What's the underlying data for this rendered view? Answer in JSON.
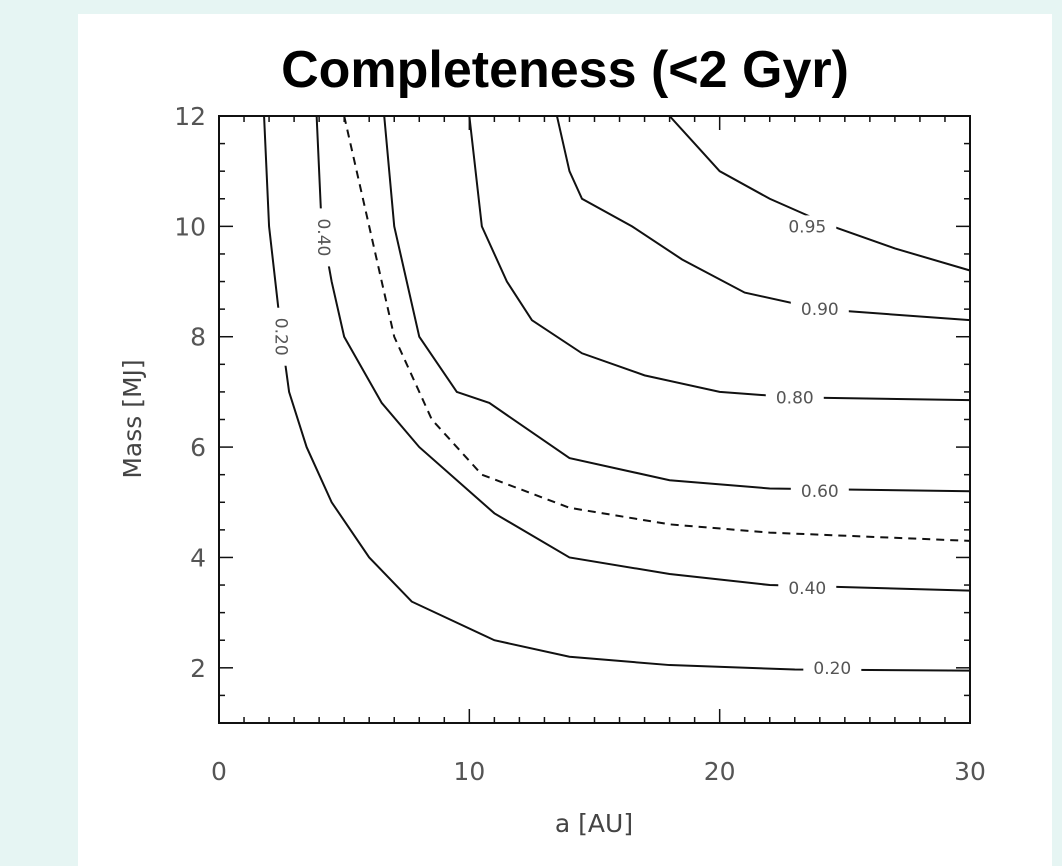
{
  "chart_data": {
    "type": "line",
    "title": "Completeness (<2 Gyr)",
    "xlabel": "a [AU]",
    "ylabel": "Mass [MJ]",
    "xlim": [
      0,
      30
    ],
    "ylim": [
      1,
      12
    ],
    "xticks": [
      "0",
      "10",
      "20",
      "30"
    ],
    "yticks": [
      "2",
      "4",
      "6",
      "8",
      "10",
      "12"
    ],
    "series": [
      {
        "name": "0.20",
        "style": "solid",
        "label_at": [
          24.5,
          2.0
        ],
        "x": [
          1.8,
          2.0,
          2.5,
          2.8,
          3.5,
          4.5,
          6.0,
          7.7,
          11.0,
          14.0,
          18.0,
          23.0,
          30.0
        ],
        "y": [
          12.0,
          10.0,
          8.0,
          7.0,
          6.0,
          5.0,
          4.0,
          3.2,
          2.5,
          2.2,
          2.05,
          1.97,
          1.95
        ]
      },
      {
        "name": "0.40",
        "style": "solid",
        "label_at": [
          23.5,
          3.45
        ],
        "x": [
          3.9,
          4.1,
          4.5,
          5.0,
          6.5,
          8.0,
          11.0,
          14.0,
          18.0,
          22.0,
          30.0
        ],
        "y": [
          12.0,
          10.0,
          9.0,
          8.0,
          6.8,
          6.0,
          4.8,
          4.0,
          3.7,
          3.5,
          3.4
        ]
      },
      {
        "name": "",
        "style": "dashed",
        "label_at": null,
        "x": [
          5.0,
          6.0,
          7.0,
          8.5,
          10.5,
          14.0,
          18.0,
          22.0,
          30.0
        ],
        "y": [
          12.0,
          10.0,
          8.0,
          6.5,
          5.5,
          4.9,
          4.6,
          4.45,
          4.3
        ]
      },
      {
        "name": "0.60",
        "style": "solid",
        "label_at": [
          24.0,
          5.2
        ],
        "x": [
          6.6,
          7.0,
          8.0,
          9.5,
          10.8,
          14.0,
          18.0,
          22.0,
          30.0
        ],
        "y": [
          12.0,
          10.0,
          8.0,
          7.0,
          6.8,
          5.8,
          5.4,
          5.25,
          5.2
        ]
      },
      {
        "name": "0.80",
        "style": "solid",
        "label_at": [
          23.0,
          6.9
        ],
        "x": [
          10.0,
          10.5,
          11.5,
          12.5,
          14.5,
          17.0,
          20.0,
          23.0,
          30.0
        ],
        "y": [
          12.0,
          10.0,
          9.0,
          8.3,
          7.7,
          7.3,
          7.0,
          6.9,
          6.85
        ]
      },
      {
        "name": "0.90",
        "style": "solid",
        "label_at": [
          24.0,
          8.5
        ],
        "x": [
          13.5,
          14.0,
          14.5,
          16.5,
          18.5,
          21.0,
          24.0,
          30.0
        ],
        "y": [
          12.0,
          11.0,
          10.5,
          10.0,
          9.4,
          8.8,
          8.5,
          8.3
        ]
      },
      {
        "name": "0.95",
        "style": "solid",
        "label_at": [
          23.5,
          10.0
        ],
        "x": [
          18.0,
          19.0,
          20.0,
          22.0,
          24.5,
          27.0,
          30.0
        ],
        "y": [
          12.0,
          11.5,
          11.0,
          10.5,
          10.0,
          9.6,
          9.2
        ]
      },
      {
        "name": "0.20",
        "style": "solid",
        "label_at": [
          2.5,
          8.0
        ],
        "label_rotate": 90,
        "x": [],
        "y": []
      },
      {
        "name": "0.40",
        "style": "solid",
        "label_at": [
          4.2,
          9.8
        ],
        "label_rotate": 90,
        "x": [],
        "y": []
      }
    ]
  }
}
